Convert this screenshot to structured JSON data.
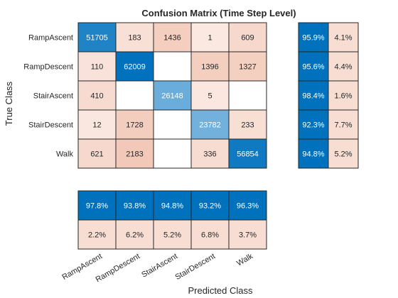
{
  "chart_data": {
    "type": "heatmap",
    "title": "Confusion Matrix (Time Step Level)",
    "xlabel": "Predicted Class",
    "ylabel": "True Class",
    "classes": [
      "RampAscent",
      "RampDescent",
      "StairAscent",
      "StairDescent",
      "Walk"
    ],
    "matrix": [
      [
        51705,
        183,
        1436,
        1,
        609
      ],
      [
        110,
        62009,
        null,
        1396,
        1327
      ],
      [
        410,
        null,
        26148,
        5,
        null
      ],
      [
        12,
        1728,
        null,
        23782,
        233
      ],
      [
        621,
        2183,
        null,
        336,
        56854
      ]
    ],
    "row_summary": {
      "correct": [
        "95.9%",
        "95.6%",
        "98.4%",
        "92.3%",
        "94.8%"
      ],
      "incorrect": [
        "4.1%",
        "4.4%",
        "1.6%",
        "7.7%",
        "5.2%"
      ]
    },
    "column_summary": {
      "correct": [
        "97.8%",
        "93.8%",
        "94.8%",
        "93.2%",
        "96.3%"
      ],
      "incorrect": [
        "2.2%",
        "6.2%",
        "5.2%",
        "6.8%",
        "3.7%"
      ]
    },
    "colors": {
      "diagonal_high": "#0072bd",
      "diagonal_low": "#72b1dc",
      "offdiag_high": "#f2c9b8",
      "offdiag_low": "#fbe9e2",
      "summary_correct": "#0072bd",
      "summary_incorrect": "#f8ddd2",
      "empty": "#ffffff"
    }
  }
}
